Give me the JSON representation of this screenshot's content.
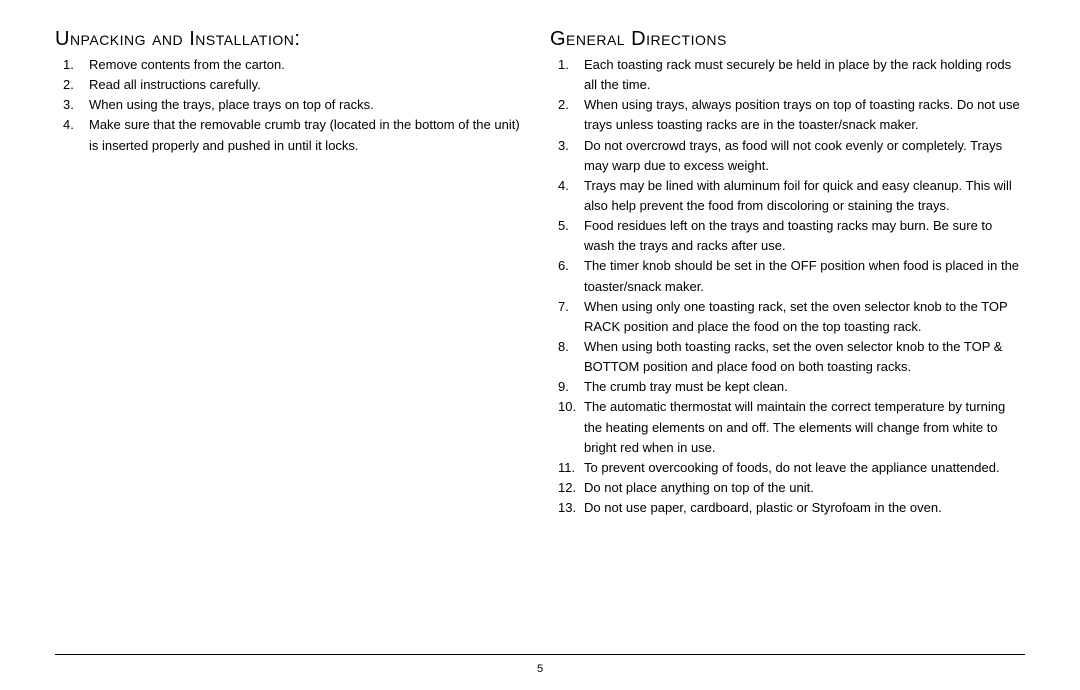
{
  "left": {
    "heading": "Unpacking and Installation:",
    "items": [
      "Remove contents from the carton.",
      "Read all instructions carefully.",
      "When using the trays, place trays on top of racks.",
      "Make sure that the removable crumb tray (located in the bottom of the unit) is inserted properly and pushed in until it locks."
    ]
  },
  "right": {
    "heading": "General Directions",
    "items": [
      "Each toasting rack must securely be held in place by the rack holding rods all the time.",
      "When using trays, always position trays on top of toasting racks.  Do not use trays unless toasting racks are in the toaster/snack maker.",
      "Do not overcrowd trays, as food will not cook evenly or completely.  Trays may warp due to excess weight.",
      "Trays may be lined with aluminum foil for quick and easy cleanup.  This will also help prevent the food from discoloring or staining the trays.",
      "Food residues left on the trays and toasting racks may burn.  Be sure to wash the trays and racks after use.",
      "The timer knob should be set in the OFF position when food is placed in the toaster/snack maker.",
      "When using only one toasting rack, set the oven selector knob to the TOP RACK position and place the food on the top toasting rack.",
      "When using both toasting racks, set the oven selector knob to the TOP & BOTTOM position and place food on both toasting racks.",
      "The crumb tray must be kept clean.",
      "The automatic thermostat will maintain the correct temperature by turning the heating elements on and off.  The elements will change from white to bright red when in use.",
      "To prevent overcooking of foods, do not leave the appliance unattended.",
      "Do not place anything on top of the unit.",
      "Do not use paper, cardboard, plastic or Styrofoam in the oven."
    ]
  },
  "page_number": "5"
}
